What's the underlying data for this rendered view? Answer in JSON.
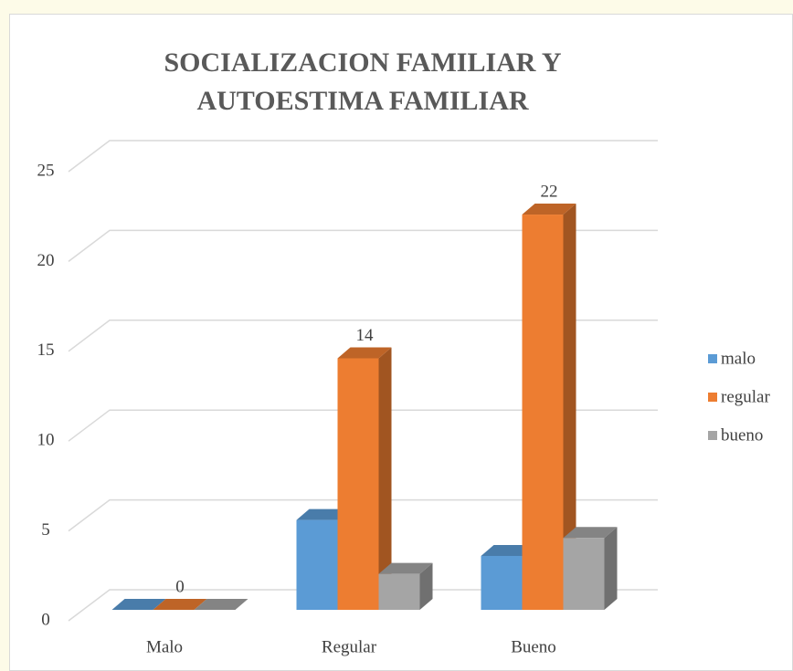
{
  "chart_data": {
    "type": "bar3d",
    "title": "SOCIALIZACION FAMILIAR Y AUTOESTIMA FAMILIAR",
    "categories": [
      "Malo",
      "Regular",
      "Bueno"
    ],
    "series": [
      {
        "name": "malo",
        "color": "#5b9bd5",
        "values": [
          0,
          5,
          3
        ]
      },
      {
        "name": "regular",
        "color": "#ed7d31",
        "values": [
          0,
          14,
          22
        ],
        "data_labels": true
      },
      {
        "name": "bueno",
        "color": "#a5a5a5",
        "values": [
          0,
          2,
          4
        ]
      }
    ],
    "ylim": [
      0,
      25
    ],
    "yticks": [
      0,
      5,
      10,
      15,
      20,
      25
    ],
    "grid": true,
    "legend": "right"
  }
}
